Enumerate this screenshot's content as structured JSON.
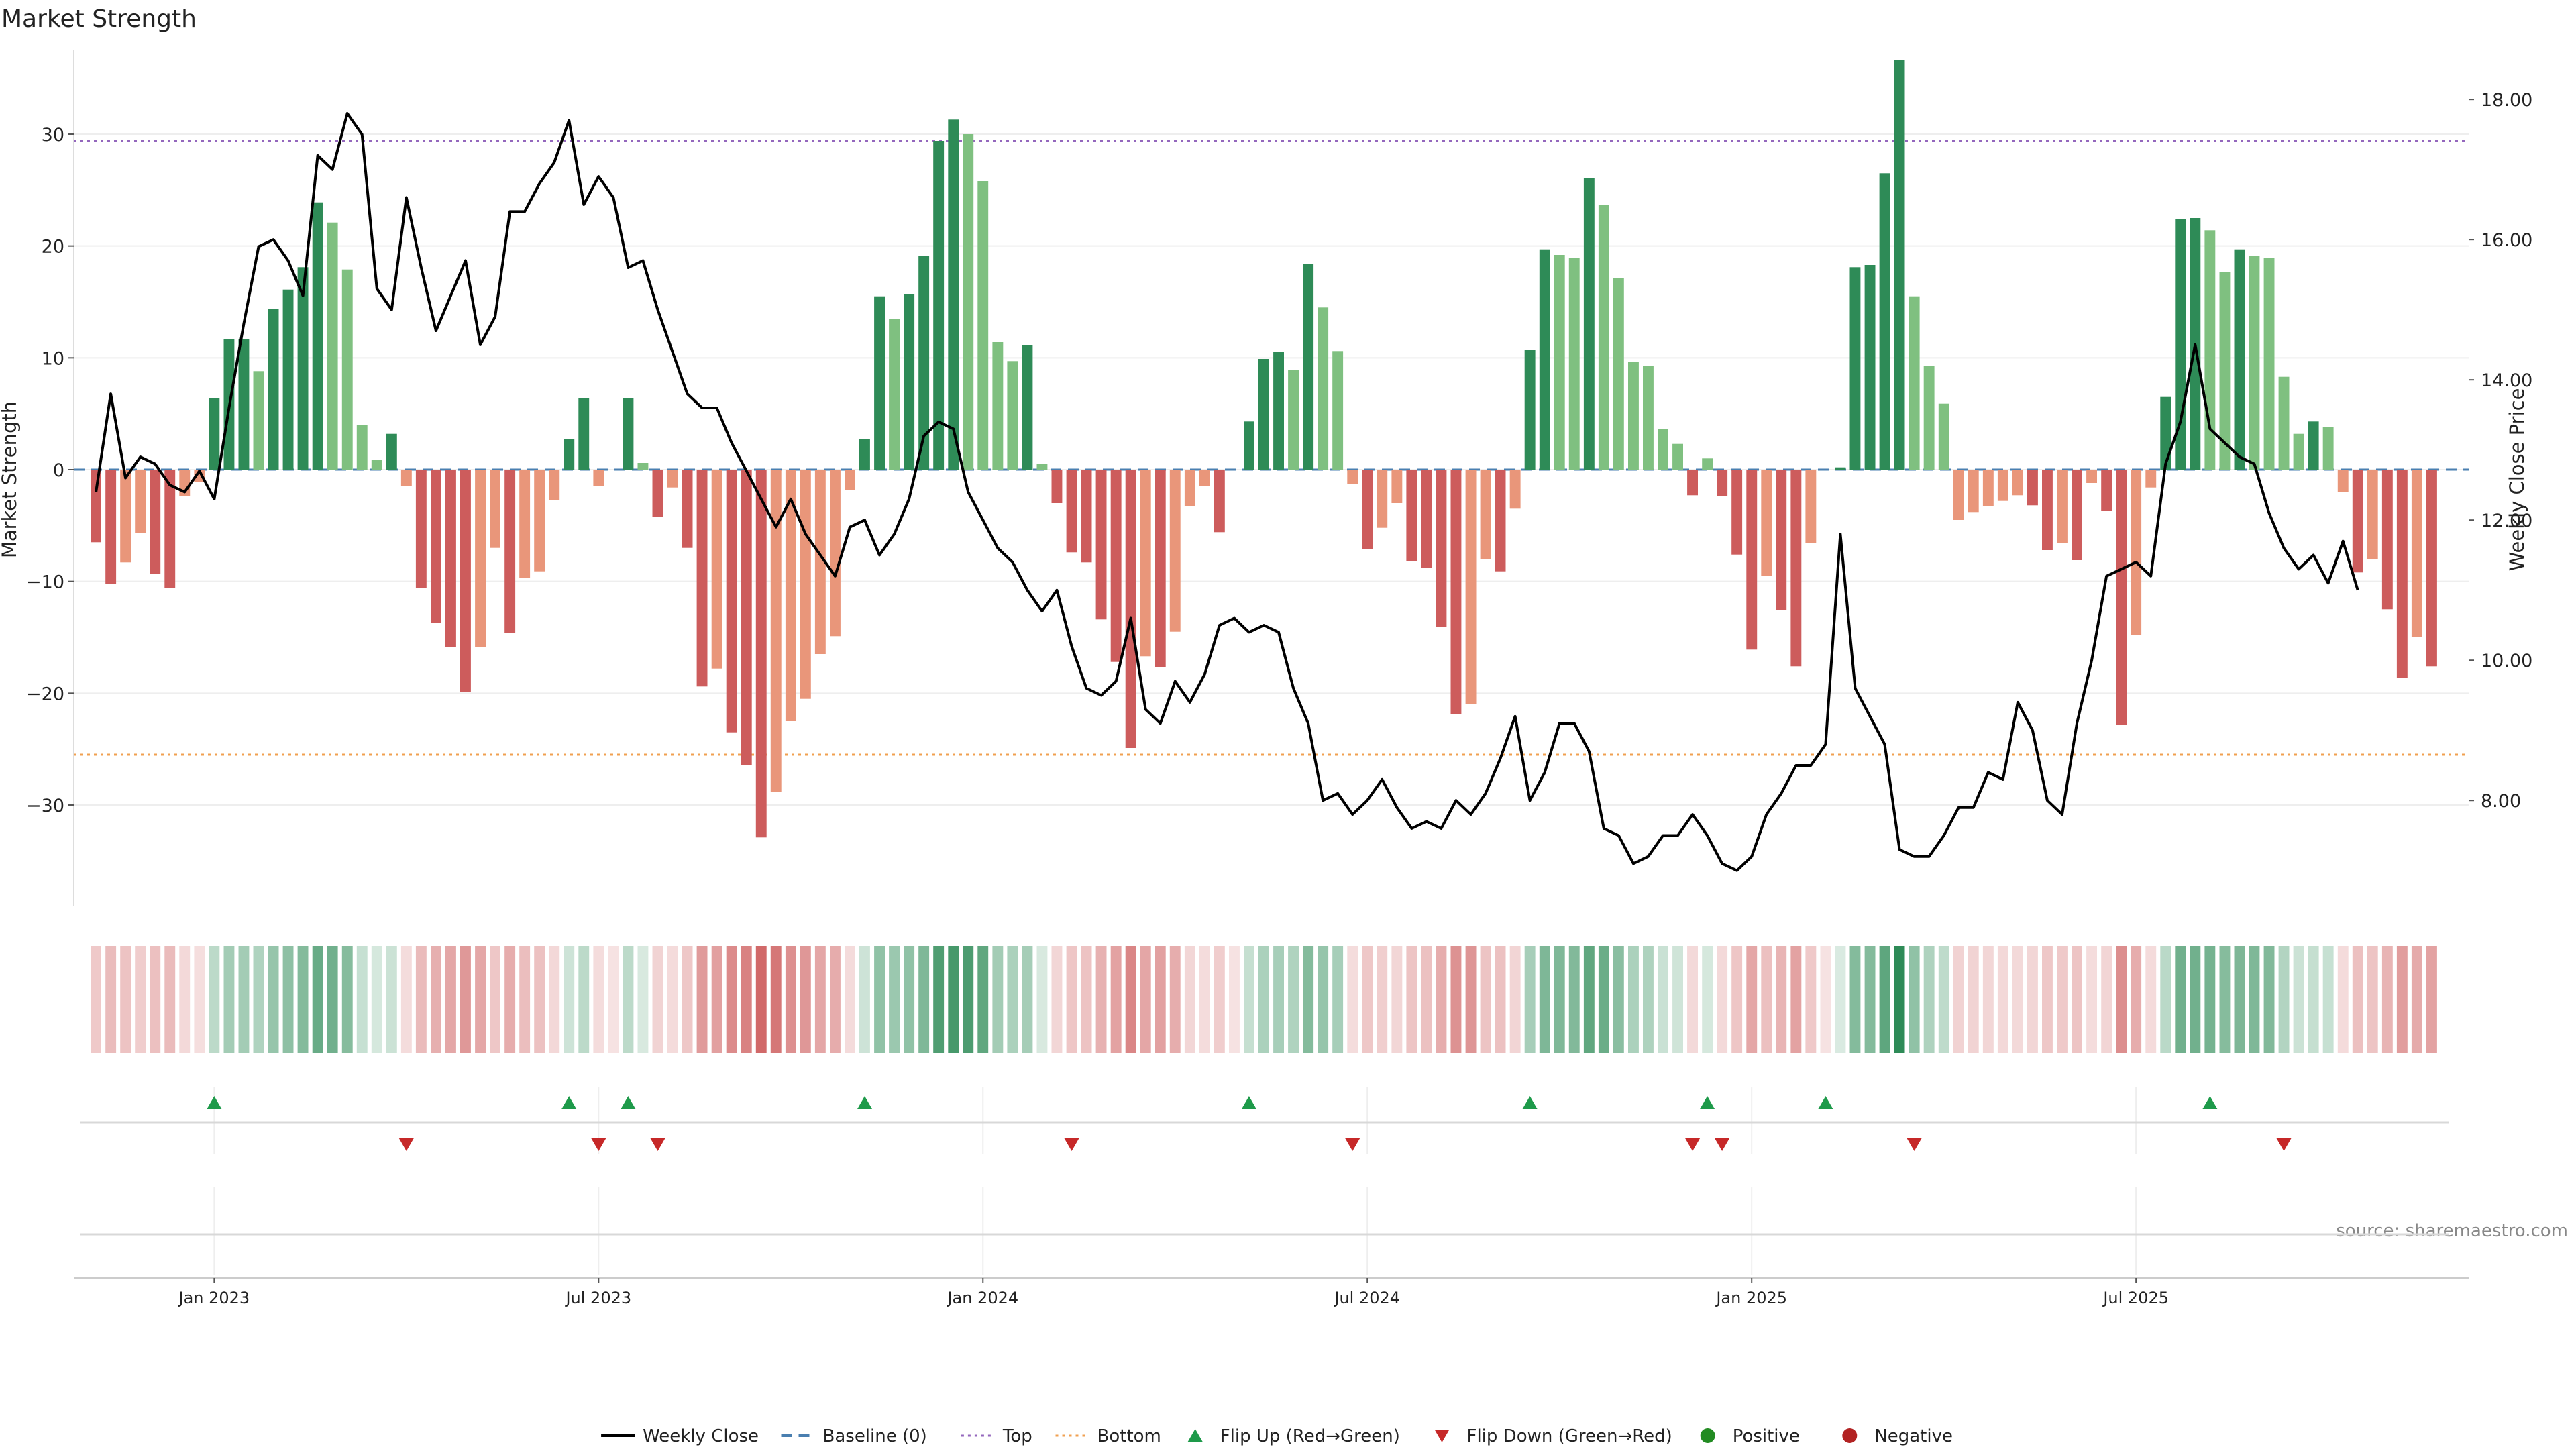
{
  "chart_data": {
    "type": "bar",
    "title": "Market Strength",
    "ylabel": "Market Strength",
    "ylabel_right": "Weekly Close Price",
    "source": "source: sharemaestro.com",
    "ylim": [
      -39,
      37.5
    ],
    "ylim_right": [
      6.5,
      18.7
    ],
    "y_ticks": [
      -30,
      -20,
      -10,
      0,
      10,
      20,
      30
    ],
    "y_ticks_right": [
      "8.00",
      "10.00",
      "12.00",
      "14.00",
      "16.00",
      "18.00"
    ],
    "x_range_weeks": [
      -9.5,
      152.5
    ],
    "x_ticks": [
      {
        "label": "Jan 2023",
        "week": 0
      },
      {
        "label": "Jul 2023",
        "week": 26
      },
      {
        "label": "Jan 2024",
        "week": 52
      },
      {
        "label": "Jul 2024",
        "week": 78
      },
      {
        "label": "Jan 2025",
        "week": 104
      },
      {
        "label": "Jul 2025",
        "week": 130
      }
    ],
    "reference_lines": {
      "top": 29.4,
      "bottom": -25.5,
      "baseline": 0
    },
    "market_strength": [
      -6.5,
      -10.2,
      -8.3,
      -5.7,
      -9.3,
      -10.6,
      -2.4,
      -1.1,
      6.4,
      11.7,
      11.7,
      8.8,
      14.4,
      16.1,
      18.1,
      23.9,
      22.1,
      17.9,
      4.0,
      0.9,
      3.2,
      -1.5,
      -10.6,
      -13.7,
      -15.9,
      -19.9,
      -15.9,
      -7.0,
      -14.6,
      -9.7,
      -9.1,
      -2.7,
      2.7,
      6.4,
      -1.5,
      0,
      6.4,
      0.6,
      -4.2,
      -1.6,
      -7.0,
      -19.4,
      -17.8,
      -23.5,
      -26.4,
      -32.9,
      -28.8,
      -22.5,
      -20.5,
      -16.5,
      -14.9,
      -1.8,
      2.7,
      15.5,
      13.5,
      15.7,
      19.1,
      29.4,
      31.3,
      30.0,
      25.8,
      11.4,
      9.7,
      11.1,
      0.5,
      -3.0,
      -7.4,
      -8.3,
      -13.4,
      -17.2,
      -24.9,
      -16.7,
      -17.7,
      -14.5,
      -3.3,
      -1.5,
      -5.6,
      0,
      4.3,
      9.9,
      10.5,
      8.9,
      18.4,
      14.5,
      10.6,
      -1.3,
      -7.1,
      -5.2,
      -3.0,
      -8.2,
      -8.8,
      -14.1,
      -21.9,
      -21.0,
      -8.0,
      -9.1,
      -3.5,
      10.7,
      19.7,
      19.2,
      18.9,
      26.1,
      23.7,
      17.1,
      9.6,
      9.3,
      3.6,
      2.3,
      -2.3,
      1.0,
      -2.4,
      -7.6,
      -16.1,
      -9.5,
      -12.6,
      -17.6,
      -6.6,
      0,
      0.2,
      18.1,
      18.3,
      26.5,
      36.6,
      15.5,
      9.3,
      5.9,
      -4.5,
      -3.8,
      -3.3,
      -2.8,
      -2.3,
      -3.2,
      -7.2,
      -6.6,
      -8.1,
      -1.2,
      -3.7,
      -22.8,
      -14.8,
      -1.6,
      6.5,
      22.4,
      22.5,
      21.4,
      17.7,
      19.7,
      19.1,
      18.9,
      8.3,
      3.2,
      4.3,
      3.8,
      -2.0,
      -9.2,
      -8.0,
      -12.5,
      -18.6,
      -15.0,
      -17.6
    ],
    "weekly_close": [
      12.4,
      13.8,
      12.6,
      12.9,
      12.8,
      12.5,
      12.4,
      12.7,
      12.3,
      13.6,
      14.8,
      15.9,
      16.0,
      15.7,
      15.2,
      17.2,
      17.0,
      17.8,
      17.5,
      15.3,
      15.0,
      16.6,
      15.6,
      14.7,
      15.2,
      15.7,
      14.5,
      14.9,
      16.4,
      16.4,
      16.8,
      17.1,
      17.7,
      16.5,
      16.9,
      16.6,
      15.6,
      15.7,
      15.0,
      14.4,
      13.8,
      13.6,
      13.6,
      13.1,
      12.7,
      12.3,
      11.9,
      12.3,
      11.8,
      11.5,
      11.2,
      11.9,
      12.0,
      11.5,
      11.8,
      12.3,
      13.2,
      13.4,
      13.3,
      12.4,
      12.0,
      11.6,
      11.4,
      11.0,
      10.7,
      11.0,
      10.2,
      9.6,
      9.5,
      9.7,
      10.6,
      9.3,
      9.1,
      9.7,
      9.4,
      9.8,
      10.5,
      10.6,
      10.4,
      10.5,
      10.4,
      9.6,
      9.1,
      8.0,
      8.1,
      7.8,
      8.0,
      8.3,
      7.9,
      7.6,
      7.7,
      7.6,
      8.0,
      7.8,
      8.1,
      8.6,
      9.2,
      8.0,
      8.4,
      9.1,
      9.1,
      8.7,
      7.6,
      7.5,
      7.1,
      7.2,
      7.5,
      7.5,
      7.8,
      7.5,
      7.1,
      7.0,
      7.2,
      7.8,
      8.1,
      8.5,
      8.5,
      8.8,
      11.8,
      9.6,
      9.2,
      8.8,
      7.3,
      7.2,
      7.2,
      7.5,
      7.9,
      7.9,
      8.4,
      8.3,
      9.4,
      9.0,
      8.0,
      7.8,
      9.1,
      10.0,
      11.2,
      11.3,
      11.4,
      11.2,
      12.8,
      13.4,
      14.5,
      13.3,
      13.1,
      12.9,
      12.8,
      12.1,
      11.6,
      11.3,
      11.5,
      11.1,
      11.7,
      11.0
    ],
    "flip_up_weeks": [
      0,
      24,
      28,
      44,
      70,
      89,
      101,
      109,
      135
    ],
    "flip_down_weeks": [
      13,
      26,
      30,
      58,
      77,
      100,
      102,
      115,
      140
    ],
    "palette": {
      "strong_green": "#2e8b57",
      "light_green": "#7fc080",
      "strong_red": "#cd5c5c",
      "light_red": "#e9967a",
      "close_line": "#000000",
      "baseline": "#4a7fb0",
      "top_line": "#9467bd",
      "bottom_line": "#f0a050",
      "flip_up": "#1e9a4a",
      "flip_down": "#c62828",
      "positive_dot": "#228b22",
      "negative_dot": "#b22222"
    },
    "legend": [
      {
        "label": "Weekly Close",
        "kind": "line",
        "icon": "solid-line"
      },
      {
        "label": "Baseline (0)",
        "kind": "dashed",
        "icon": "dashed-line"
      },
      {
        "label": "Top",
        "kind": "dotted",
        "icon": "dotted-line"
      },
      {
        "label": "Bottom",
        "kind": "dotted",
        "icon": "dotted-line"
      },
      {
        "label": "Flip Up (Red→Green)",
        "kind": "triangle-up",
        "icon": "triangle-up-icon"
      },
      {
        "label": "Flip Down (Green→Red)",
        "kind": "triangle-down",
        "icon": "triangle-down-icon"
      },
      {
        "label": "Positive",
        "kind": "dot",
        "icon": "circle-icon"
      },
      {
        "label": "Negative",
        "kind": "dot",
        "icon": "circle-icon"
      }
    ]
  }
}
